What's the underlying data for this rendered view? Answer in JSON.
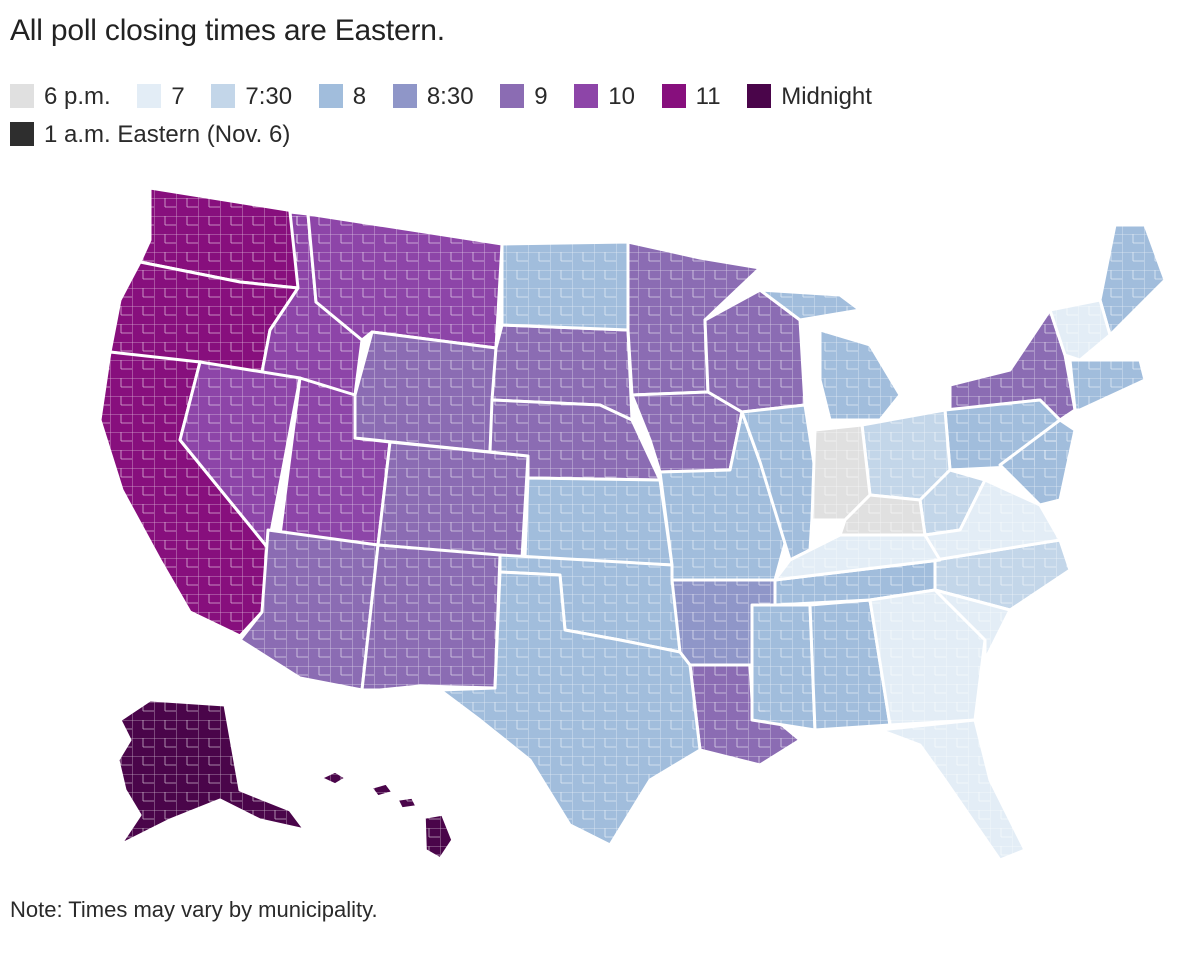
{
  "title": "All poll closing times are Eastern.",
  "legend": [
    {
      "label": "6 p.m.",
      "color": "#e0e0e0"
    },
    {
      "label": "7",
      "color": "#e3edf6"
    },
    {
      "label": "7:30",
      "color": "#c3d6e9"
    },
    {
      "label": "8",
      "color": "#a1bddc"
    },
    {
      "label": "8:30",
      "color": "#8f96c8"
    },
    {
      "label": "9",
      "color": "#8b6cb3"
    },
    {
      "label": "10",
      "color": "#8d45a8"
    },
    {
      "label": "11",
      "color": "#870f7d"
    },
    {
      "label": "Midnight",
      "color": "#4a054a"
    },
    {
      "label": "1 a.m. Eastern (Nov. 6)",
      "color": "#2e2e2e"
    }
  ],
  "note": "Note: Times may vary by municipality."
}
